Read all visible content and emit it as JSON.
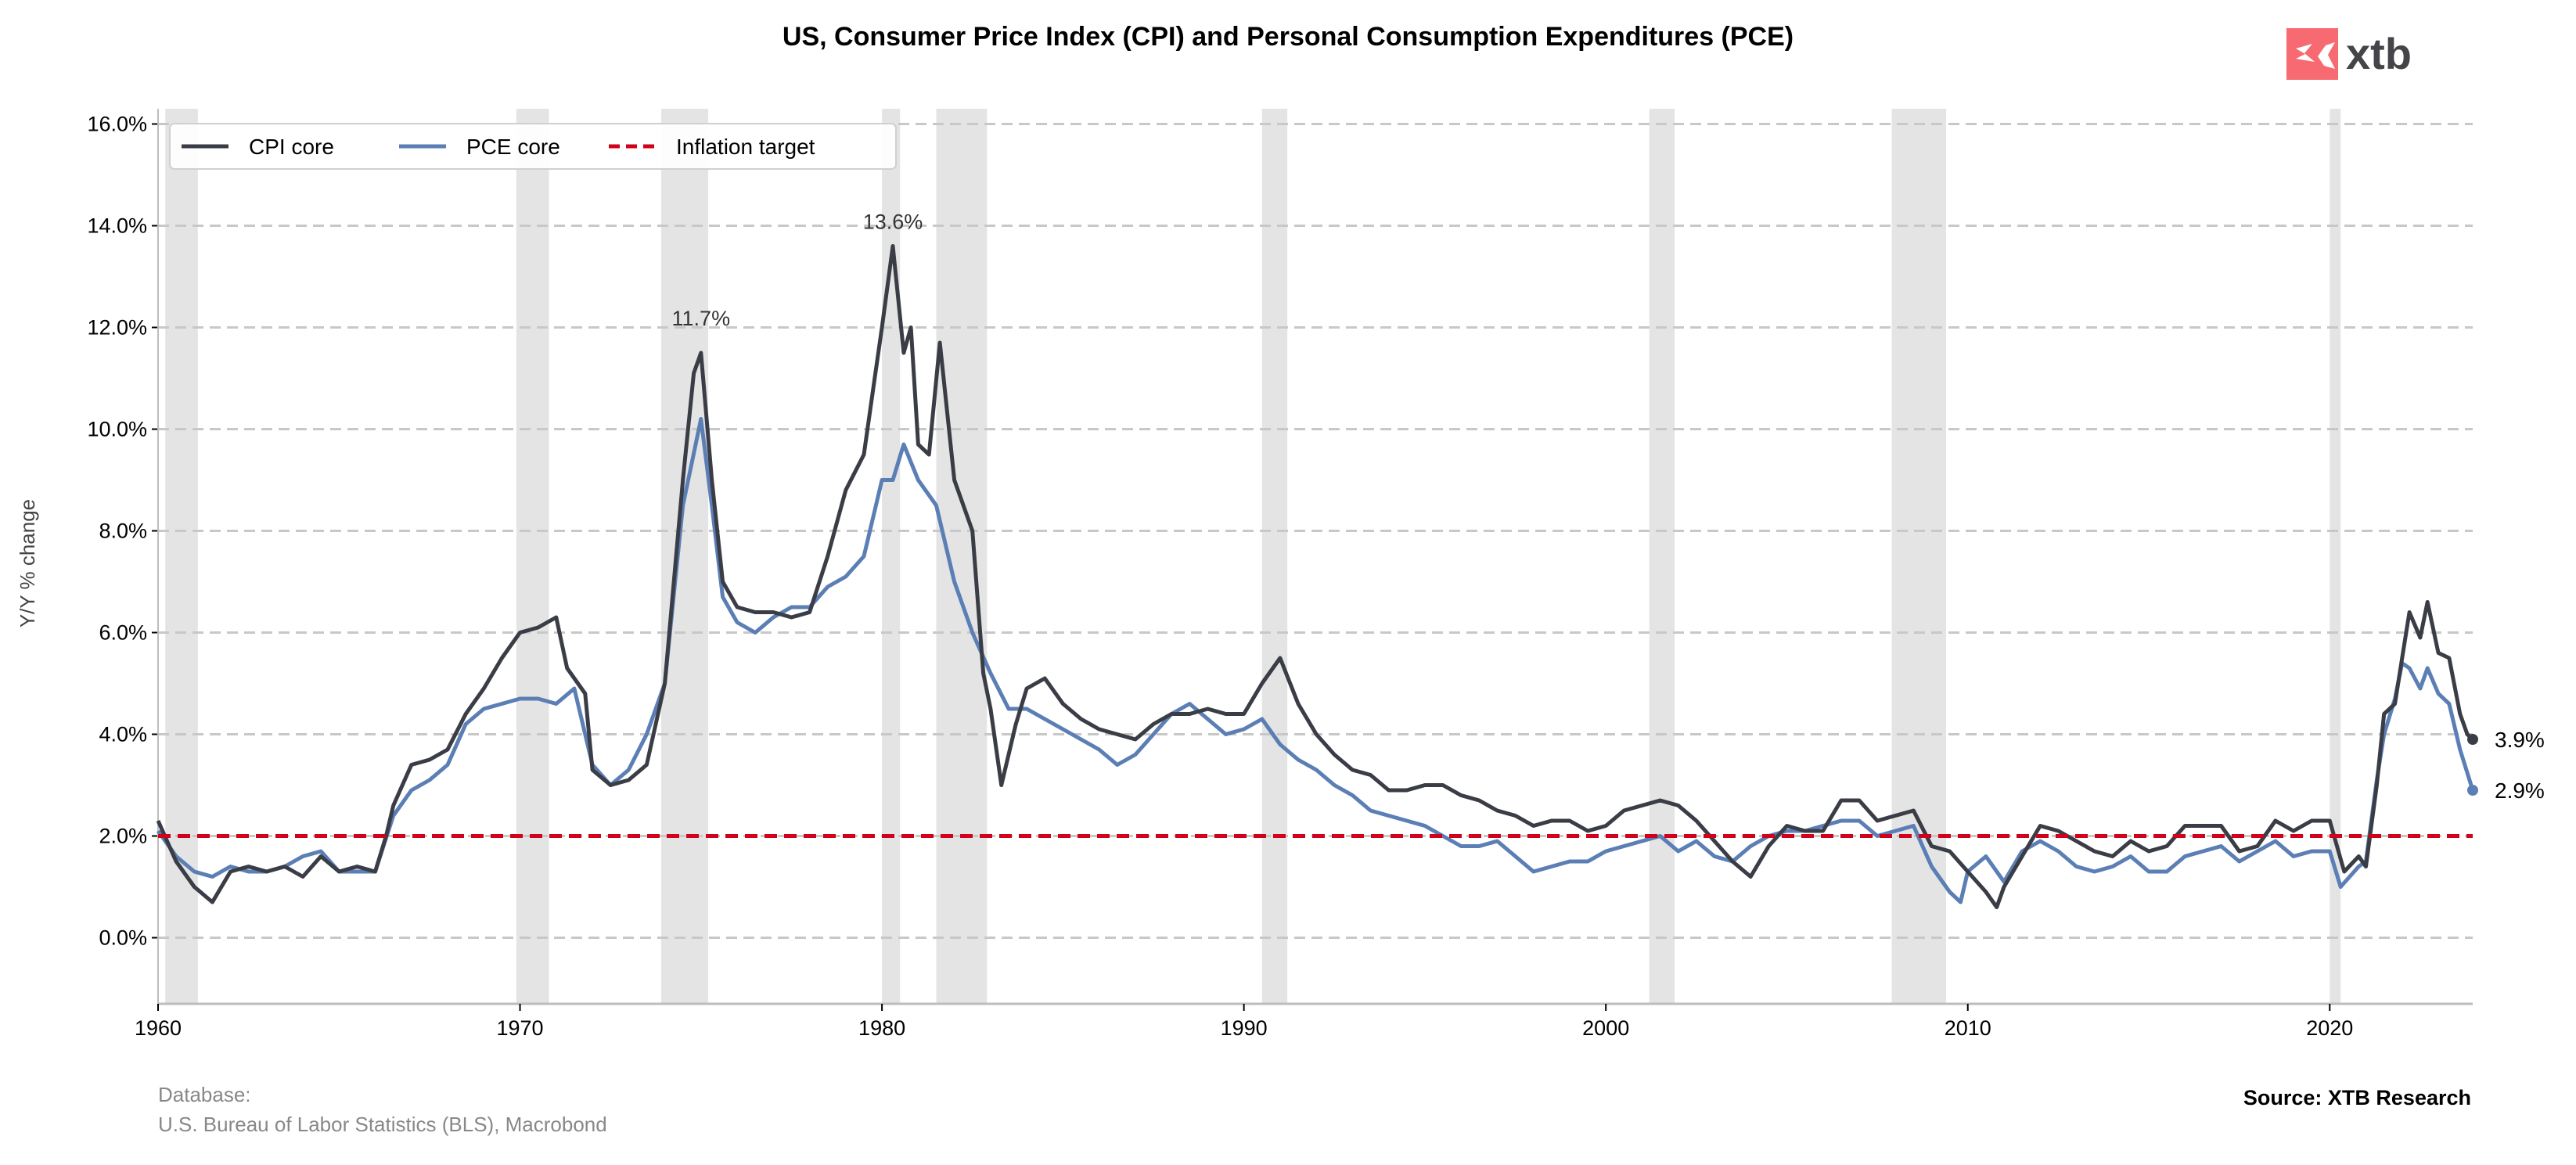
{
  "chart_data": {
    "type": "line",
    "title": "US, Consumer Price Index (CPI) and Personal Consumption Expenditures (PCE)",
    "xlabel": "",
    "ylabel": "Y/Y % change",
    "xlim": [
      1960,
      2023.95
    ],
    "ylim": [
      -1.3,
      16.3
    ],
    "x_ticks": [
      1960,
      1970,
      1980,
      1990,
      2000,
      2010,
      2020
    ],
    "x_tick_labels": [
      "1960",
      "1970",
      "1980",
      "1990",
      "2000",
      "2010",
      "2020"
    ],
    "y_ticks": [
      0,
      2,
      4,
      6,
      8,
      10,
      12,
      14,
      16
    ],
    "y_tick_labels": [
      "0.0%",
      "2.0%",
      "4.0%",
      "6.0%",
      "8.0%",
      "10.0%",
      "12.0%",
      "14.0%",
      "16.0%"
    ],
    "grid": "horizontal dashed",
    "legend_position": "top-left",
    "recession_bands": [
      [
        1960.2,
        1961.1
      ],
      [
        1969.9,
        1970.8
      ],
      [
        1973.9,
        1975.2
      ],
      [
        1980.0,
        1980.5
      ],
      [
        1981.5,
        1982.9
      ],
      [
        1990.5,
        1991.2
      ],
      [
        2001.2,
        2001.9
      ],
      [
        2007.9,
        2009.4
      ],
      [
        2020.0,
        2020.3
      ]
    ],
    "series": [
      {
        "name": "CPI core",
        "color": "#3a3d46",
        "x": [
          1960.0,
          1960.5,
          1961.0,
          1961.5,
          1962.0,
          1962.5,
          1963.0,
          1963.5,
          1964.0,
          1964.5,
          1965.0,
          1965.5,
          1966.0,
          1966.3,
          1966.5,
          1967.0,
          1967.5,
          1968.0,
          1968.5,
          1969.0,
          1969.5,
          1970.0,
          1970.5,
          1971.0,
          1971.3,
          1971.8,
          1972.0,
          1972.5,
          1973.0,
          1973.5,
          1974.0,
          1974.5,
          1974.8,
          1975.0,
          1975.3,
          1975.6,
          1976.0,
          1976.5,
          1977.0,
          1977.5,
          1978.0,
          1978.5,
          1979.0,
          1979.5,
          1979.8,
          1980.0,
          1980.3,
          1980.6,
          1980.8,
          1981.0,
          1981.3,
          1981.6,
          1982.0,
          1982.5,
          1982.8,
          1983.0,
          1983.3,
          1983.7,
          1984.0,
          1984.5,
          1985.0,
          1985.5,
          1986.0,
          1986.5,
          1987.0,
          1987.5,
          1988.0,
          1988.5,
          1989.0,
          1989.5,
          1990.0,
          1990.5,
          1991.0,
          1991.5,
          1992.0,
          1992.5,
          1993.0,
          1993.5,
          1994.0,
          1994.5,
          1995.0,
          1995.5,
          1996.0,
          1996.5,
          1997.0,
          1997.5,
          1998.0,
          1998.5,
          1999.0,
          1999.5,
          2000.0,
          2000.5,
          2001.0,
          2001.5,
          2002.0,
          2002.5,
          2003.0,
          2003.5,
          2004.0,
          2004.5,
          2005.0,
          2005.5,
          2006.0,
          2006.5,
          2007.0,
          2007.5,
          2008.0,
          2008.5,
          2009.0,
          2009.5,
          2010.0,
          2010.5,
          2010.8,
          2011.0,
          2011.5,
          2012.0,
          2012.5,
          2013.0,
          2013.5,
          2014.0,
          2014.5,
          2015.0,
          2015.5,
          2016.0,
          2016.5,
          2017.0,
          2017.5,
          2018.0,
          2018.5,
          2019.0,
          2019.5,
          2020.0,
          2020.4,
          2020.8,
          2021.0,
          2021.3,
          2021.5,
          2021.8,
          2022.0,
          2022.2,
          2022.5,
          2022.7,
          2023.0,
          2023.3,
          2023.6,
          2023.8,
          2023.95
        ],
        "values": [
          2.3,
          1.5,
          1.0,
          0.7,
          1.3,
          1.4,
          1.3,
          1.4,
          1.2,
          1.6,
          1.3,
          1.4,
          1.3,
          2.0,
          2.6,
          3.4,
          3.5,
          3.7,
          4.4,
          4.9,
          5.5,
          6.0,
          6.1,
          6.3,
          5.3,
          4.8,
          3.3,
          3.0,
          3.1,
          3.4,
          5.0,
          9.0,
          11.1,
          11.5,
          9.0,
          7.0,
          6.5,
          6.4,
          6.4,
          6.3,
          6.4,
          7.5,
          8.8,
          9.5,
          11.0,
          12.0,
          13.6,
          11.5,
          12.0,
          9.7,
          9.5,
          11.7,
          9.0,
          8.0,
          5.2,
          4.5,
          3.0,
          4.2,
          4.9,
          5.1,
          4.6,
          4.3,
          4.1,
          4.0,
          3.9,
          4.2,
          4.4,
          4.4,
          4.5,
          4.4,
          4.4,
          5.0,
          5.5,
          4.6,
          4.0,
          3.6,
          3.3,
          3.2,
          2.9,
          2.9,
          3.0,
          3.0,
          2.8,
          2.7,
          2.5,
          2.4,
          2.2,
          2.3,
          2.3,
          2.1,
          2.2,
          2.5,
          2.6,
          2.7,
          2.6,
          2.3,
          1.9,
          1.5,
          1.2,
          1.8,
          2.2,
          2.1,
          2.1,
          2.7,
          2.7,
          2.3,
          2.4,
          2.5,
          1.8,
          1.7,
          1.3,
          0.9,
          0.6,
          1.0,
          1.6,
          2.2,
          2.1,
          1.9,
          1.7,
          1.6,
          1.9,
          1.7,
          1.8,
          2.2,
          2.2,
          2.2,
          1.7,
          1.8,
          2.3,
          2.1,
          2.3,
          2.3,
          1.3,
          1.6,
          1.4,
          3.0,
          4.4,
          4.6,
          5.5,
          6.4,
          5.9,
          6.6,
          5.6,
          5.5,
          4.4,
          4.0,
          3.9
        ]
      },
      {
        "name": "PCE core",
        "color": "#5b7fb5",
        "x": [
          1960.0,
          1960.5,
          1961.0,
          1961.5,
          1962.0,
          1962.5,
          1963.0,
          1963.5,
          1964.0,
          1964.5,
          1965.0,
          1965.5,
          1966.0,
          1966.5,
          1967.0,
          1967.5,
          1968.0,
          1968.5,
          1969.0,
          1969.5,
          1970.0,
          1970.5,
          1971.0,
          1971.5,
          1972.0,
          1972.5,
          1973.0,
          1973.5,
          1974.0,
          1974.5,
          1975.0,
          1975.3,
          1975.6,
          1976.0,
          1976.5,
          1977.0,
          1977.5,
          1978.0,
          1978.5,
          1979.0,
          1979.5,
          1980.0,
          1980.3,
          1980.6,
          1981.0,
          1981.5,
          1982.0,
          1982.5,
          1983.0,
          1983.5,
          1984.0,
          1984.5,
          1985.0,
          1985.5,
          1986.0,
          1986.5,
          1987.0,
          1987.5,
          1988.0,
          1988.5,
          1989.0,
          1989.5,
          1990.0,
          1990.5,
          1991.0,
          1991.5,
          1992.0,
          1992.5,
          1993.0,
          1993.5,
          1994.0,
          1994.5,
          1995.0,
          1995.5,
          1996.0,
          1996.5,
          1997.0,
          1997.5,
          1998.0,
          1998.5,
          1999.0,
          1999.5,
          2000.0,
          2000.5,
          2001.0,
          2001.5,
          2002.0,
          2002.5,
          2003.0,
          2003.5,
          2004.0,
          2004.5,
          2005.0,
          2005.5,
          2006.0,
          2006.5,
          2007.0,
          2007.5,
          2008.0,
          2008.5,
          2009.0,
          2009.5,
          2009.8,
          2010.0,
          2010.5,
          2011.0,
          2011.5,
          2012.0,
          2012.5,
          2013.0,
          2013.5,
          2014.0,
          2014.5,
          2015.0,
          2015.5,
          2016.0,
          2016.5,
          2017.0,
          2017.5,
          2018.0,
          2018.5,
          2019.0,
          2019.5,
          2020.0,
          2020.3,
          2020.8,
          2021.0,
          2021.3,
          2021.5,
          2021.8,
          2022.0,
          2022.2,
          2022.5,
          2022.7,
          2023.0,
          2023.3,
          2023.6,
          2023.95
        ],
        "values": [
          2.1,
          1.6,
          1.3,
          1.2,
          1.4,
          1.3,
          1.3,
          1.4,
          1.6,
          1.7,
          1.3,
          1.3,
          1.3,
          2.4,
          2.9,
          3.1,
          3.4,
          4.2,
          4.5,
          4.6,
          4.7,
          4.7,
          4.6,
          4.9,
          3.4,
          3.0,
          3.3,
          4.0,
          5.0,
          8.5,
          10.2,
          8.5,
          6.7,
          6.2,
          6.0,
          6.3,
          6.5,
          6.5,
          6.9,
          7.1,
          7.5,
          9.0,
          9.0,
          9.7,
          9.0,
          8.5,
          7.0,
          6.0,
          5.2,
          4.5,
          4.5,
          4.3,
          4.1,
          3.9,
          3.7,
          3.4,
          3.6,
          4.0,
          4.4,
          4.6,
          4.3,
          4.0,
          4.1,
          4.3,
          3.8,
          3.5,
          3.3,
          3.0,
          2.8,
          2.5,
          2.4,
          2.3,
          2.2,
          2.0,
          1.8,
          1.8,
          1.9,
          1.6,
          1.3,
          1.4,
          1.5,
          1.5,
          1.7,
          1.8,
          1.9,
          2.0,
          1.7,
          1.9,
          1.6,
          1.5,
          1.8,
          2.0,
          2.1,
          2.1,
          2.2,
          2.3,
          2.3,
          2.0,
          2.1,
          2.2,
          1.4,
          0.9,
          0.7,
          1.3,
          1.6,
          1.1,
          1.7,
          1.9,
          1.7,
          1.4,
          1.3,
          1.4,
          1.6,
          1.3,
          1.3,
          1.6,
          1.7,
          1.8,
          1.5,
          1.7,
          1.9,
          1.6,
          1.7,
          1.7,
          1.0,
          1.4,
          1.5,
          3.1,
          4.0,
          4.7,
          5.4,
          5.3,
          4.9,
          5.3,
          4.8,
          4.6,
          3.7,
          2.9
        ]
      },
      {
        "name": "Inflation target",
        "color": "#d0021b",
        "x": [
          1960,
          2023.95
        ],
        "values": [
          2.0,
          2.0
        ]
      }
    ],
    "annotations": [
      {
        "x": 1975.0,
        "y": 11.7,
        "text": "11.7%"
      },
      {
        "x": 1980.3,
        "y": 13.6,
        "text": "13.6%"
      }
    ],
    "end_labels": [
      {
        "series": "CPI core",
        "text": "3.9%"
      },
      {
        "series": "PCE core",
        "text": "2.9%"
      }
    ]
  },
  "logo": {
    "text": "xtb",
    "color": "#f76a72"
  },
  "footer": {
    "database_label": "Database:",
    "database_value": "U.S. Bureau of Labor Statistics (BLS), Macrobond",
    "source": "Source: XTB Research"
  }
}
